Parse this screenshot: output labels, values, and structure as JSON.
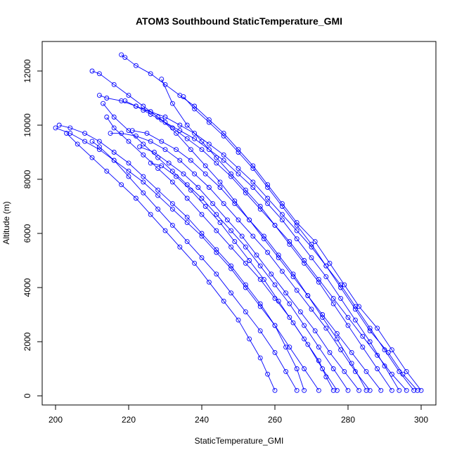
{
  "chart_data": {
    "type": "scatter",
    "title": "ATOM3 Southbound StaticTemperature_GMI",
    "xlabel": "StaticTemperature_GMI",
    "ylabel": "Altitude (m)",
    "xlim": [
      200,
      300
    ],
    "ylim": [
      0,
      12000
    ],
    "xticks": [
      "200",
      "220",
      "240",
      "260",
      "280",
      "300"
    ],
    "yticks": [
      "0",
      "2000",
      "4000",
      "6000",
      "8000",
      "10000",
      "12000"
    ],
    "grid": false,
    "colors": {
      "series": "#0000ff",
      "axis": "#000000",
      "background": "#ffffff"
    },
    "series": [
      {
        "x": [
          300,
          296,
          292,
          288,
          283,
          279,
          275,
          271,
          266,
          262,
          258,
          254,
          250,
          246,
          242,
          238,
          234,
          230,
          226,
          222,
          219,
          218
        ],
        "y": [
          200,
          900,
          1700,
          2500,
          3300,
          4100,
          4900,
          5700,
          6400,
          7100,
          7800,
          8500,
          9100,
          9700,
          10200,
          10700,
          11100,
          11500,
          11900,
          12200,
          12500,
          12600
        ]
      },
      {
        "x": [
          299,
          295,
          291,
          286,
          282,
          278,
          274,
          270,
          266,
          262,
          258,
          254,
          250,
          246,
          242,
          238,
          235
        ],
        "y": [
          200,
          800,
          1600,
          2400,
          3200,
          4000,
          4800,
          5600,
          6300,
          7000,
          7700,
          8400,
          9000,
          9600,
          10100,
          10600,
          11050
        ]
      },
      {
        "x": [
          298,
          294,
          290,
          286,
          282,
          278,
          274,
          270,
          266,
          262,
          258,
          254,
          250,
          246,
          242,
          238,
          234,
          230,
          226,
          222,
          218,
          214,
          212
        ],
        "y": [
          200,
          900,
          1700,
          2500,
          3300,
          4100,
          4800,
          5500,
          6100,
          6700,
          7300,
          7900,
          8400,
          8900,
          9300,
          9700,
          10000,
          10300,
          10500,
          10700,
          10900,
          11000,
          11100
        ]
      },
      {
        "x": [
          296,
          292,
          288,
          284,
          280,
          276,
          272,
          268,
          264,
          260,
          256,
          252,
          248,
          244,
          240,
          236,
          232,
          228,
          224,
          220,
          216,
          212,
          210
        ],
        "y": [
          200,
          800,
          1500,
          2200,
          2900,
          3600,
          4300,
          5000,
          5700,
          6300,
          6900,
          7500,
          8100,
          8600,
          9100,
          9500,
          9900,
          10300,
          10700,
          11100,
          11500,
          11900,
          12000
        ]
      },
      {
        "x": [
          292,
          288,
          284,
          280,
          276,
          272,
          268,
          264,
          260,
          256,
          252,
          248,
          244,
          240,
          236,
          232,
          229
        ],
        "y": [
          200,
          1000,
          1800,
          2600,
          3400,
          4200,
          4900,
          5600,
          6300,
          7000,
          7600,
          8200,
          8800,
          9400,
          10000,
          10800,
          11700
        ]
      },
      {
        "x": [
          289,
          285,
          281,
          277,
          273,
          269,
          265,
          261,
          257,
          253,
          249,
          245,
          241,
          237,
          233,
          229,
          226,
          224
        ],
        "y": [
          200,
          900,
          1600,
          2300,
          3000,
          3700,
          4400,
          5100,
          5800,
          6500,
          7200,
          7900,
          8500,
          9100,
          9700,
          10200,
          10500,
          10550
        ]
      },
      {
        "x": [
          286,
          282,
          278,
          274,
          270,
          266,
          262,
          258,
          254,
          250,
          246,
          242,
          238,
          234,
          230,
          226,
          222,
          218,
          215
        ],
        "y": [
          200,
          900,
          1700,
          2500,
          3200,
          3900,
          4600,
          5300,
          5900,
          6500,
          7100,
          7700,
          8200,
          8700,
          9100,
          9400,
          9600,
          9700,
          9700
        ]
      },
      {
        "x": [
          283,
          279,
          275,
          271,
          267,
          263,
          259,
          255,
          251,
          247,
          243,
          239,
          235,
          231,
          227,
          223
        ],
        "y": [
          200,
          900,
          1600,
          2400,
          3100,
          3800,
          4500,
          5200,
          5900,
          6500,
          7100,
          7700,
          8200,
          8600,
          9000,
          9200
        ]
      },
      {
        "x": [
          280,
          276,
          272,
          268,
          264,
          260,
          256,
          252,
          248,
          244,
          240,
          236,
          232,
          228,
          224,
          220,
          216,
          213
        ],
        "y": [
          200,
          1000,
          1800,
          2600,
          3400,
          4100,
          4800,
          5500,
          6100,
          6700,
          7300,
          7800,
          8300,
          8800,
          9300,
          9800,
          10300,
          10800
        ]
      },
      {
        "x": [
          277,
          273,
          269,
          265,
          261,
          257,
          253,
          249,
          245,
          241,
          237,
          233,
          229,
          226
        ],
        "y": [
          200,
          1000,
          1900,
          2700,
          3500,
          4300,
          5000,
          5700,
          6400,
          7000,
          7600,
          8100,
          8500,
          8600
        ]
      },
      {
        "x": [
          272,
          268,
          264,
          260,
          256,
          252,
          248,
          244,
          240,
          236,
          232,
          228,
          224,
          220,
          216,
          212,
          208,
          204,
          201
        ],
        "y": [
          200,
          1000,
          1800,
          2600,
          3400,
          4100,
          4800,
          5400,
          6000,
          6600,
          7100,
          7600,
          8100,
          8600,
          9000,
          9400,
          9700,
          9900,
          10000
        ]
      },
      {
        "x": [
          266,
          263,
          260,
          256,
          252,
          248,
          244,
          240,
          236,
          232,
          228,
          224,
          220,
          216,
          212,
          210
        ],
        "y": [
          200,
          900,
          1600,
          2400,
          3100,
          3800,
          4500,
          5100,
          5700,
          6300,
          6900,
          7500,
          8100,
          8700,
          9200,
          9400
        ]
      },
      {
        "x": [
          260,
          258,
          256,
          253,
          250,
          246,
          242,
          238,
          234,
          230,
          226,
          222,
          218,
          214,
          210,
          206,
          203
        ],
        "y": [
          200,
          800,
          1400,
          2100,
          2800,
          3500,
          4200,
          4900,
          5500,
          6100,
          6700,
          7300,
          7800,
          8300,
          8800,
          9300,
          9700
        ]
      },
      {
        "x": [
          268,
          266,
          263,
          260,
          256,
          252,
          248,
          244,
          240,
          236,
          232,
          228,
          224,
          220,
          216,
          212,
          208,
          204,
          200
        ],
        "y": [
          200,
          1000,
          1800,
          2600,
          3300,
          4000,
          4700,
          5300,
          5900,
          6400,
          6900,
          7400,
          7900,
          8300,
          8700,
          9100,
          9400,
          9700,
          9900
        ]
      },
      {
        "x": [
          294,
          290,
          286,
          282,
          278,
          274,
          270,
          266,
          262,
          258,
          254,
          250,
          246,
          242,
          238,
          234,
          230,
          226,
          222,
          219
        ],
        "y": [
          200,
          1100,
          2000,
          2800,
          3600,
          4400,
          5100,
          5800,
          6500,
          7100,
          7700,
          8200,
          8700,
          9100,
          9500,
          9800,
          10100,
          10400,
          10700,
          10900
        ]
      },
      {
        "x": [
          285,
          281,
          277,
          273,
          269,
          265,
          261,
          257,
          253,
          249,
          245,
          241,
          237,
          233,
          229,
          225,
          221
        ],
        "y": [
          200,
          1200,
          2100,
          2900,
          3700,
          4500,
          5200,
          5900,
          6500,
          7100,
          7700,
          8200,
          8700,
          9100,
          9400,
          9700,
          9800
        ]
      },
      {
        "x": [
          276,
          274,
          272,
          268,
          264,
          260,
          256,
          252,
          248,
          244,
          240,
          236,
          232,
          228,
          224,
          220,
          216,
          214
        ],
        "y": [
          200,
          700,
          1300,
          2100,
          2900,
          3600,
          4300,
          4900,
          5500,
          6100,
          6700,
          7300,
          7900,
          8400,
          8900,
          9400,
          9900,
          10300
        ]
      }
    ]
  }
}
